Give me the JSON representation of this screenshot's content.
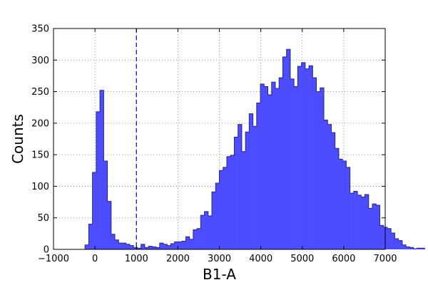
{
  "chart_data": {
    "type": "bar",
    "style": "histogram",
    "title": "",
    "xlabel": "B1-A",
    "ylabel": "Counts",
    "xlim": [
      -1000,
      7000
    ],
    "ylim": [
      0,
      350
    ],
    "xticks": [
      -1000,
      0,
      1000,
      2000,
      3000,
      4000,
      5000,
      6000,
      7000
    ],
    "xtick_labels": [
      "−1000",
      "0",
      "1000",
      "2000",
      "3000",
      "4000",
      "5000",
      "6000",
      "7000"
    ],
    "yticks": [
      0,
      50,
      100,
      150,
      200,
      250,
      300,
      350
    ],
    "ytick_labels": [
      "0",
      "50",
      "100",
      "150",
      "200",
      "250",
      "300",
      "350"
    ],
    "grid": true,
    "legend": "none",
    "bin_width": 90,
    "bin_start": -240,
    "counts": [
      7,
      40,
      122,
      218,
      252,
      140,
      76,
      24,
      15,
      10,
      10,
      8,
      6,
      3,
      2,
      8,
      3,
      5,
      4,
      3,
      10,
      8,
      6,
      9,
      12,
      12,
      13,
      20,
      16,
      31,
      33,
      54,
      60,
      53,
      91,
      105,
      125,
      130,
      147,
      149,
      178,
      198,
      155,
      186,
      215,
      195,
      232,
      262,
      258,
      245,
      265,
      255,
      272,
      305,
      317,
      270,
      258,
      290,
      296,
      286,
      291,
      272,
      250,
      256,
      205,
      198,
      185,
      160,
      143,
      140,
      130,
      89,
      92,
      86,
      83,
      87,
      65,
      72,
      70,
      38,
      35,
      33,
      26,
      17,
      14,
      7,
      4,
      3,
      1,
      2,
      2
    ],
    "threshold": {
      "x": 1000,
      "style": "dashed"
    },
    "colors": {
      "fill": "#4d4dff",
      "edge": "#262682",
      "threshold": "#0000cc",
      "grid": "#808080"
    }
  }
}
